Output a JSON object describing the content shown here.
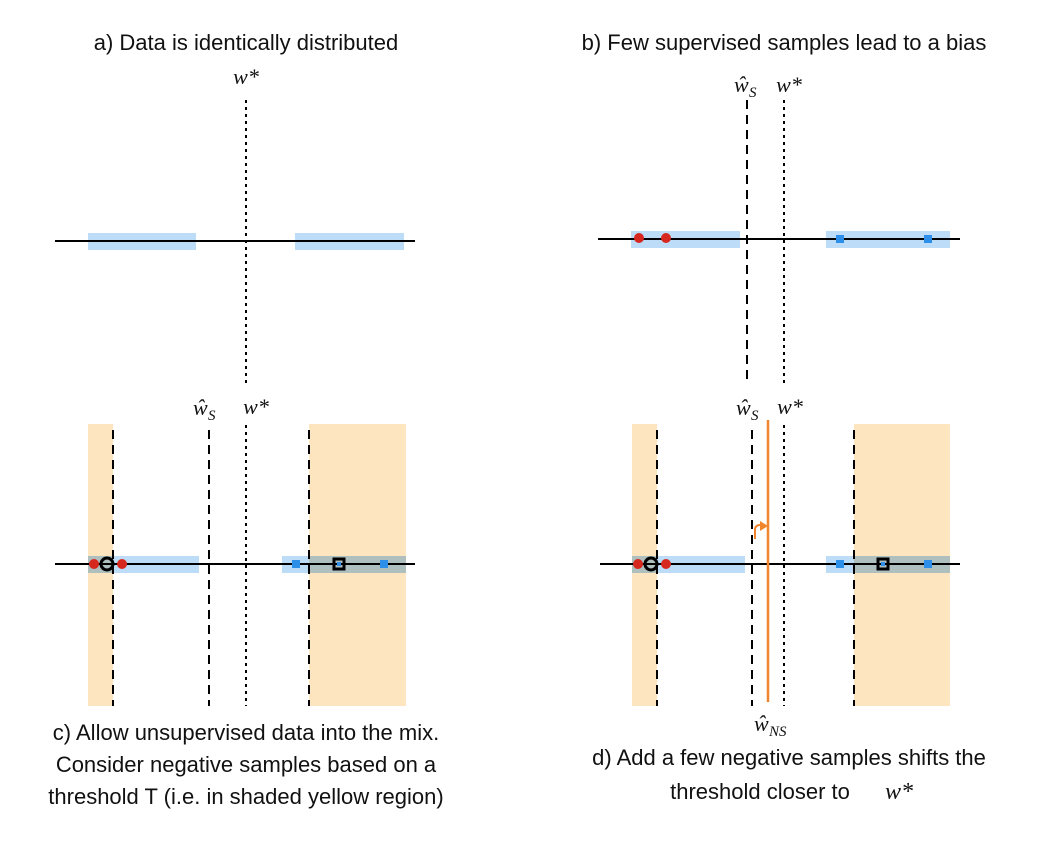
{
  "colors": {
    "axis": "#000000",
    "cluster_band": "#bcdcf7",
    "threshold_region": "#fde5bf",
    "overlap": "#aebfbe",
    "negative_sample": "#d6281f",
    "positive_sample": "#2e8fe8",
    "shift_arrow": "#f0852d"
  },
  "panel_a": {
    "caption": "a) Data is identically distributed",
    "w_star_label": "w*"
  },
  "panel_b": {
    "caption": "b) Few supervised samples lead to a bias",
    "ws_label": "ŵ",
    "ws_sub": "S",
    "w_star_label": "w*"
  },
  "panel_c": {
    "caption_lines": [
      "c) Allow unsupervised data into the mix.",
      "Consider negative samples based on a",
      "threshold T (i.e. in shaded yellow region)"
    ],
    "ws_label": "ŵ",
    "ws_sub": "S",
    "w_star_label": "w*"
  },
  "panel_d": {
    "caption_line1": "d) Add a few negative samples shifts the",
    "caption_line2": "threshold closer to",
    "caption_line2_math": "w*",
    "ws_label": "ŵ",
    "ws_sub": "S",
    "w_star_label": "w*",
    "wns_label": "ŵ",
    "wns_sub": "NS"
  }
}
